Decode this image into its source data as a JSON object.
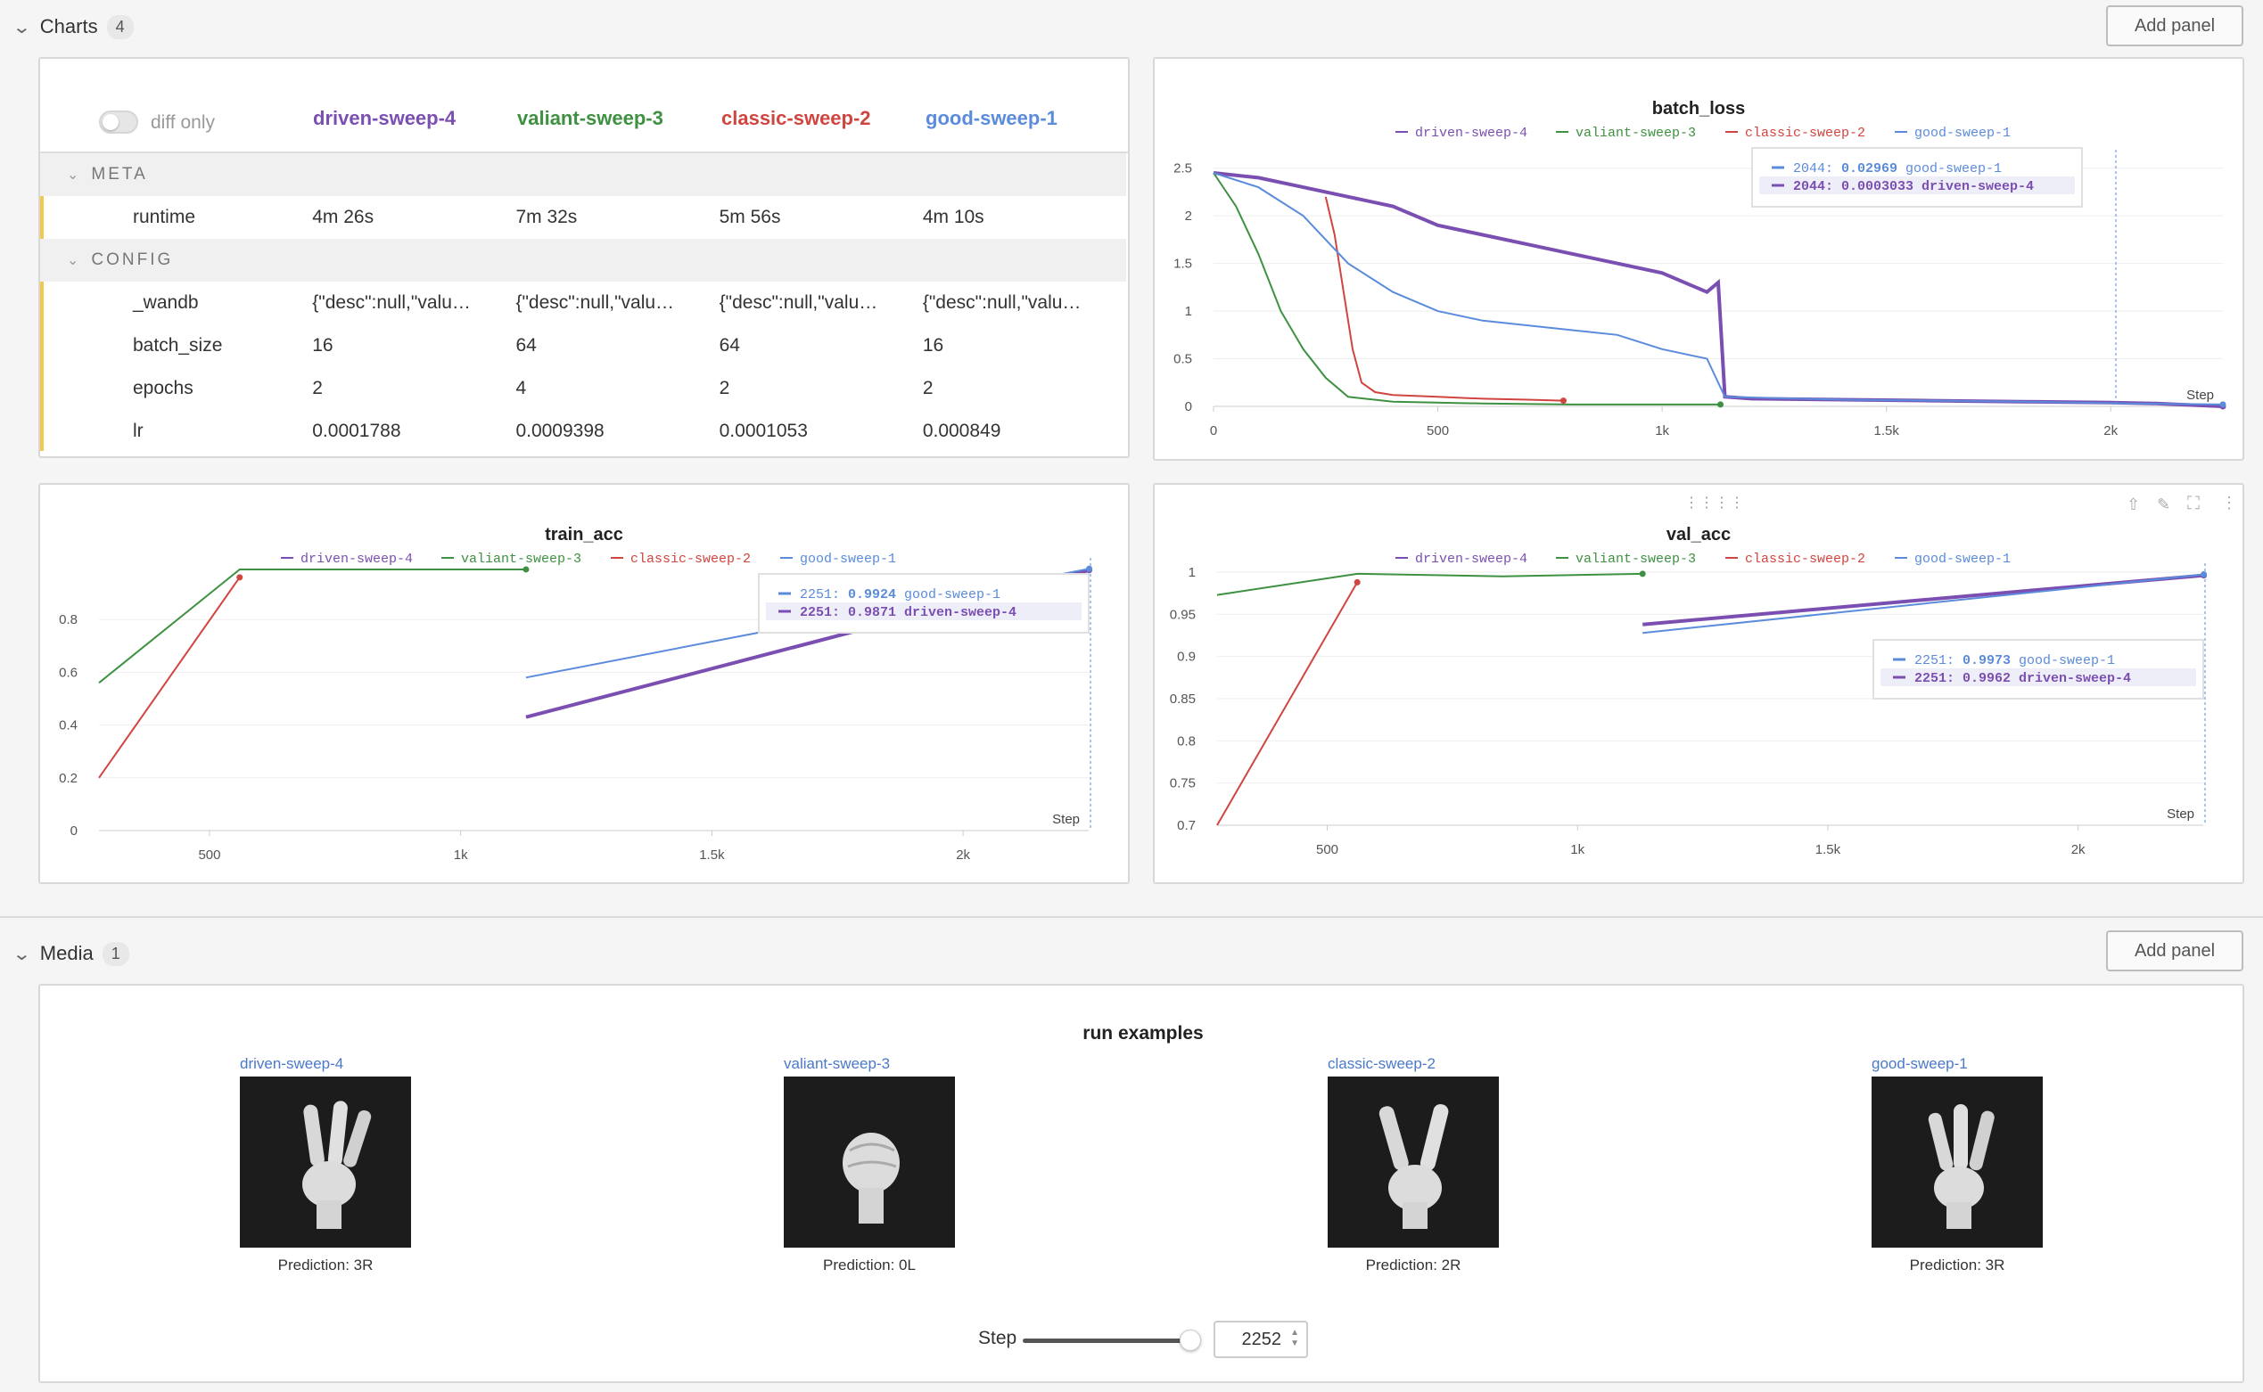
{
  "colors": {
    "driven": "#7b4fb2",
    "valiant": "#3d9140",
    "classic": "#d0453f",
    "good": "#5b8bdb"
  },
  "charts_section": {
    "title": "Charts",
    "count": "4",
    "add_panel": "Add panel"
  },
  "media_section": {
    "title": "Media",
    "count": "1",
    "add_panel": "Add panel"
  },
  "table": {
    "diff_only": "diff only",
    "runs": [
      "driven-sweep-4",
      "valiant-sweep-3",
      "classic-sweep-2",
      "good-sweep-1"
    ],
    "meta_label": "META",
    "config_label": "CONFIG",
    "rows": [
      {
        "key": "runtime",
        "values": [
          "4m 26s",
          "7m 32s",
          "5m 56s",
          "4m 10s"
        ]
      },
      {
        "key": "_wandb",
        "values": [
          "{\"desc\":null,\"valu…",
          "{\"desc\":null,\"valu…",
          "{\"desc\":null,\"valu…",
          "{\"desc\":null,\"valu…"
        ]
      },
      {
        "key": "batch_size",
        "values": [
          "16",
          "64",
          "64",
          "16"
        ]
      },
      {
        "key": "epochs",
        "values": [
          "2",
          "4",
          "2",
          "2"
        ]
      },
      {
        "key": "lr",
        "values": [
          "0.0001788",
          "0.0009398",
          "0.0001053",
          "0.000849"
        ]
      }
    ]
  },
  "legend": [
    "driven-sweep-4",
    "valiant-sweep-3",
    "classic-sweep-2",
    "good-sweep-1"
  ],
  "chart_data": [
    {
      "type": "line",
      "title": "batch_loss",
      "xlabel": "Step",
      "xlim": [
        0,
        2250
      ],
      "ylim": [
        0,
        2.6
      ],
      "xticks": [
        "0",
        "500",
        "1k",
        "1.5k",
        "2k"
      ],
      "yticks": [
        "0",
        "0.5",
        "1",
        "1.5",
        "2",
        "2.5"
      ],
      "series": [
        {
          "name": "driven-sweep-4",
          "x": [
            0,
            100,
            200,
            300,
            400,
            500,
            600,
            700,
            800,
            900,
            1000,
            1100,
            1125,
            1140,
            1200,
            1400,
            1600,
            1800,
            2000,
            2100,
            2250
          ],
          "y": [
            2.45,
            2.4,
            2.3,
            2.2,
            2.1,
            1.9,
            1.8,
            1.7,
            1.6,
            1.5,
            1.4,
            1.2,
            1.3,
            0.1,
            0.08,
            0.07,
            0.06,
            0.05,
            0.04,
            0.03,
            0.0003
          ]
        },
        {
          "name": "valiant-sweep-3",
          "x": [
            0,
            50,
            100,
            150,
            200,
            250,
            300,
            400,
            600,
            800,
            1000,
            1130
          ],
          "y": [
            2.45,
            2.1,
            1.6,
            1.0,
            0.6,
            0.3,
            0.1,
            0.05,
            0.03,
            0.02,
            0.02,
            0.02
          ]
        },
        {
          "name": "classic-sweep-2",
          "x": [
            250,
            270,
            290,
            310,
            330,
            360,
            400,
            500,
            600,
            700,
            780
          ],
          "y": [
            2.2,
            1.8,
            1.2,
            0.6,
            0.25,
            0.15,
            0.12,
            0.1,
            0.08,
            0.07,
            0.06
          ]
        },
        {
          "name": "good-sweep-1",
          "x": [
            0,
            100,
            200,
            300,
            400,
            500,
            600,
            700,
            800,
            900,
            1000,
            1100,
            1140,
            1400,
            1800,
            2044,
            2250
          ],
          "y": [
            2.45,
            2.3,
            2.0,
            1.5,
            1.2,
            1.0,
            0.9,
            0.85,
            0.8,
            0.75,
            0.6,
            0.5,
            0.1,
            0.07,
            0.05,
            0.03,
            0.02
          ]
        }
      ],
      "tooltip": [
        {
          "step": "2044:",
          "value": "0.02969",
          "run": "good-sweep-1"
        },
        {
          "step": "2044:",
          "value": "0.0003033",
          "run": "driven-sweep-4"
        }
      ]
    },
    {
      "type": "line",
      "title": "train_acc",
      "xlabel": "Step",
      "xlim": [
        280,
        2250
      ],
      "ylim": [
        0,
        1
      ],
      "xticks": [
        "500",
        "1k",
        "1.5k",
        "2k"
      ],
      "yticks": [
        "0",
        "0.2",
        "0.4",
        "0.6",
        "0.8"
      ],
      "series": [
        {
          "name": "driven-sweep-4",
          "x": [
            1130,
            2251
          ],
          "y": [
            0.43,
            0.9871
          ]
        },
        {
          "name": "valiant-sweep-3",
          "x": [
            280,
            560,
            1130
          ],
          "y": [
            0.56,
            0.99,
            0.99
          ]
        },
        {
          "name": "classic-sweep-2",
          "x": [
            280,
            560
          ],
          "y": [
            0.2,
            0.96
          ]
        },
        {
          "name": "good-sweep-1",
          "x": [
            1130,
            2251
          ],
          "y": [
            0.58,
            0.9924
          ]
        }
      ],
      "tooltip": [
        {
          "step": "2251:",
          "value": "0.9924",
          "run": "good-sweep-1"
        },
        {
          "step": "2251:",
          "value": "0.9871",
          "run": "driven-sweep-4"
        }
      ]
    },
    {
      "type": "line",
      "title": "val_acc",
      "xlabel": "Step",
      "xlim": [
        280,
        2250
      ],
      "ylim": [
        0.7,
        1.0
      ],
      "xticks": [
        "500",
        "1k",
        "1.5k",
        "2k"
      ],
      "yticks": [
        "0.7",
        "0.75",
        "0.8",
        "0.85",
        "0.9",
        "0.95",
        "1"
      ],
      "series": [
        {
          "name": "driven-sweep-4",
          "x": [
            1130,
            2251
          ],
          "y": [
            0.938,
            0.9962
          ]
        },
        {
          "name": "valiant-sweep-3",
          "x": [
            280,
            560,
            850,
            1130
          ],
          "y": [
            0.973,
            0.998,
            0.995,
            0.998
          ]
        },
        {
          "name": "classic-sweep-2",
          "x": [
            280,
            560
          ],
          "y": [
            0.7,
            0.988
          ]
        },
        {
          "name": "good-sweep-1",
          "x": [
            1130,
            2251
          ],
          "y": [
            0.928,
            0.9973
          ]
        }
      ],
      "tooltip": [
        {
          "step": "2251:",
          "value": "0.9973",
          "run": "good-sweep-1"
        },
        {
          "step": "2251:",
          "value": "0.9962",
          "run": "driven-sweep-4"
        }
      ]
    }
  ],
  "media": {
    "title": "run examples",
    "items": [
      {
        "run": "driven-sweep-4",
        "caption": "Prediction: 3R",
        "icon": "three-fingers-hand"
      },
      {
        "run": "valiant-sweep-3",
        "caption": "Prediction: 0L",
        "icon": "fist-hand"
      },
      {
        "run": "classic-sweep-2",
        "caption": "Prediction: 2R",
        "icon": "two-fingers-hand"
      },
      {
        "run": "good-sweep-1",
        "caption": "Prediction: 3R",
        "icon": "three-fingers-hand"
      }
    ],
    "step_label": "Step",
    "step_value": "2252",
    "step_fraction": 1.0
  }
}
